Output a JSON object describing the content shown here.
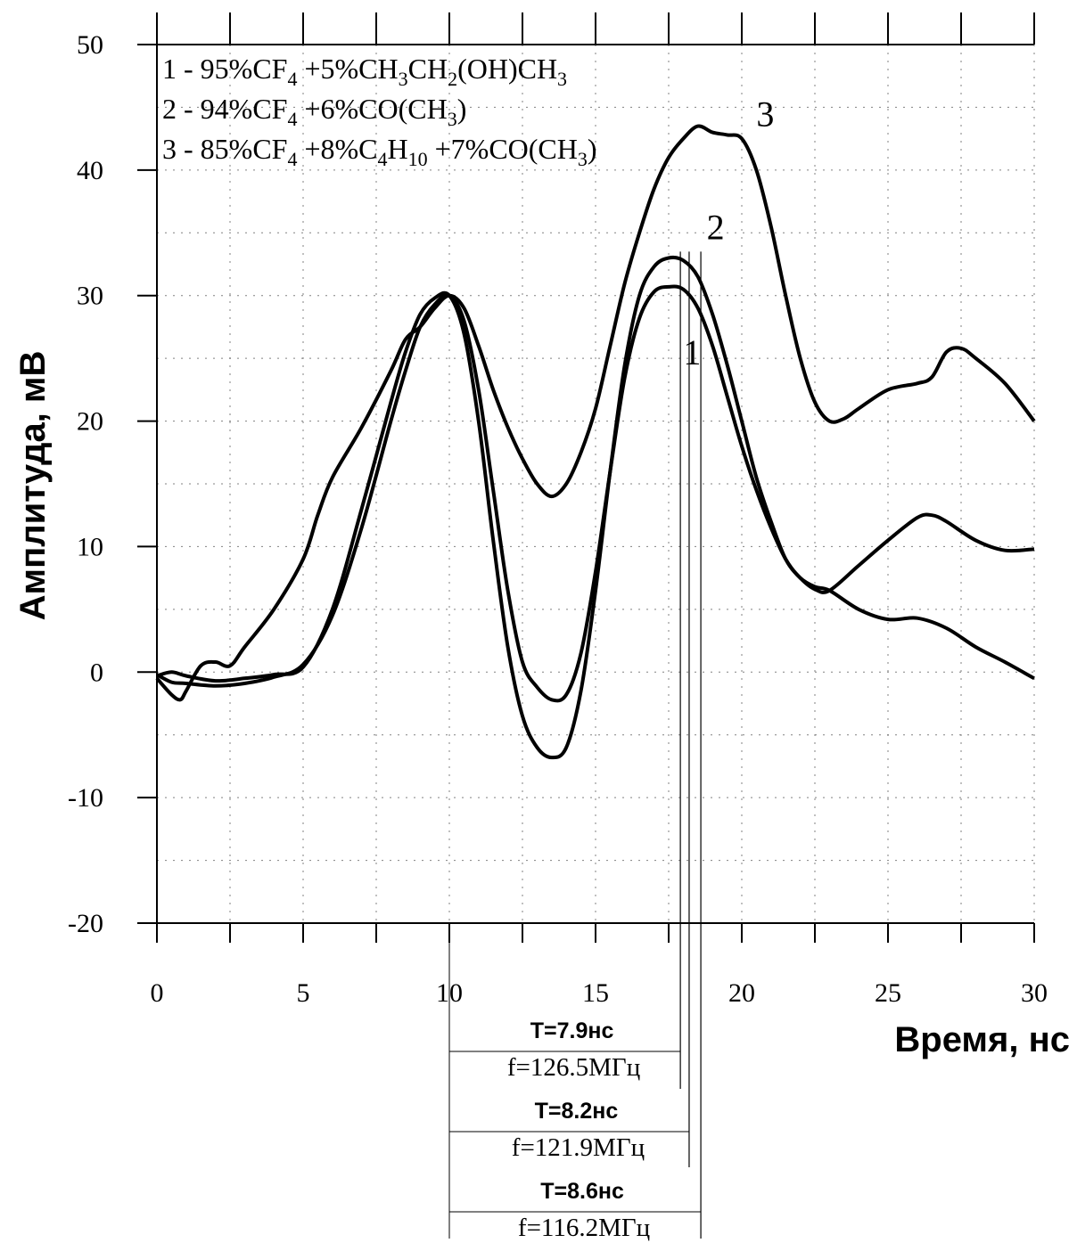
{
  "chart_data": {
    "type": "line",
    "title": "",
    "xlabel": "Время, нс",
    "ylabel": "Амплитуда, мВ",
    "xlim": [
      0,
      30
    ],
    "ylim": [
      -20,
      50
    ],
    "x_ticks": [
      0,
      5,
      10,
      15,
      20,
      25,
      30
    ],
    "y_ticks": [
      -20,
      -10,
      0,
      10,
      20,
      30,
      40,
      50
    ],
    "grid": true,
    "legend_position": "top-left",
    "legend": [
      "1 - 95%CF4 +5%CH3CH2(OH)CH3",
      "2 - 94%CF4 +6%CO(CH3)",
      "3 - 85%CF4 +8%C4H10 +7%CO(CH3)"
    ],
    "series": [
      {
        "name": "1",
        "label_x": 18.0,
        "label_y": 24.5,
        "x": [
          0,
          0.5,
          1,
          2,
          3,
          4,
          5,
          6,
          7,
          8,
          8.5,
          9,
          9.5,
          10,
          10.5,
          11,
          11.5,
          12,
          12.5,
          13,
          13.5,
          14,
          14.5,
          15,
          15.5,
          16,
          16.5,
          17,
          17.5,
          18,
          18.5,
          19,
          19.5,
          20,
          20.5,
          21,
          21.5,
          22,
          22.5,
          23,
          24,
          25,
          26,
          27,
          28,
          29,
          30
        ],
        "y": [
          -0.2,
          -0.8,
          -0.9,
          -1.1,
          -0.9,
          -0.4,
          0.6,
          4.5,
          11.5,
          20.0,
          24.0,
          27.5,
          29.3,
          30.0,
          28.0,
          22.5,
          14.5,
          6.5,
          0.8,
          -1.2,
          -2.2,
          -1.8,
          1.5,
          8.0,
          16.0,
          23.5,
          28.2,
          30.3,
          30.7,
          30.5,
          29.0,
          26.0,
          22.0,
          18.0,
          14.5,
          11.5,
          9.0,
          7.5,
          6.8,
          6.5,
          5.0,
          4.2,
          4.3,
          3.5,
          2.0,
          0.8,
          -0.5
        ]
      },
      {
        "name": "2",
        "label_x": 18.8,
        "label_y": 34.5,
        "x": [
          0,
          0.5,
          1,
          2,
          3,
          4,
          5,
          6,
          7,
          8,
          8.5,
          9,
          9.5,
          10,
          10.5,
          11,
          11.5,
          12,
          12.5,
          13,
          13.5,
          14,
          14.5,
          15,
          15.5,
          16,
          16.5,
          17,
          17.5,
          18,
          18.5,
          19,
          19.5,
          20,
          20.5,
          21,
          21.5,
          22,
          22.5,
          23,
          24,
          25,
          26,
          26.5,
          27,
          28,
          29,
          30
        ],
        "y": [
          -0.3,
          0.0,
          -0.3,
          -0.7,
          -0.5,
          -0.2,
          0.4,
          5.0,
          13.0,
          21.5,
          25.5,
          28.5,
          29.8,
          30.0,
          27.0,
          20.0,
          10.5,
          2.0,
          -3.5,
          -6.0,
          -6.8,
          -6.0,
          -1.5,
          6.5,
          16.0,
          24.5,
          30.0,
          32.3,
          33.0,
          32.8,
          31.5,
          28.5,
          24.5,
          20.0,
          15.5,
          12.0,
          9.0,
          7.5,
          6.6,
          6.5,
          8.5,
          10.5,
          12.3,
          12.5,
          12.0,
          10.5,
          9.7,
          9.8
        ]
      },
      {
        "name": "3",
        "label_x": 20.5,
        "label_y": 43.5,
        "x": [
          0,
          0.5,
          0.8,
          1,
          1.5,
          2,
          2.5,
          3,
          4,
          5,
          5.5,
          6,
          7,
          8,
          8.5,
          9,
          9.5,
          10,
          10.5,
          11,
          11.5,
          12,
          12.5,
          13,
          13.5,
          14,
          14.5,
          15,
          15.5,
          16,
          16.5,
          17,
          17.5,
          18,
          18.5,
          19,
          19.5,
          20,
          20.5,
          21,
          21.5,
          22,
          22.5,
          23,
          23.5,
          24,
          25,
          26,
          26.5,
          27,
          27.5,
          28,
          29,
          30
        ],
        "y": [
          -0.5,
          -1.8,
          -2.2,
          -1.5,
          0.5,
          0.8,
          0.5,
          2.0,
          5.0,
          9.0,
          12.5,
          15.5,
          19.5,
          24.0,
          26.5,
          27.5,
          29.0,
          30.0,
          29.0,
          26.0,
          22.5,
          19.5,
          17.0,
          15.0,
          14.0,
          15.0,
          17.5,
          21.0,
          26.0,
          31.0,
          35.0,
          38.5,
          41.0,
          42.5,
          43.5,
          43.0,
          42.8,
          42.5,
          40.0,
          35.5,
          30.0,
          25.0,
          21.5,
          20.0,
          20.2,
          21.0,
          22.5,
          23.0,
          23.5,
          25.5,
          25.8,
          25.0,
          23.0,
          20.0
        ]
      }
    ],
    "period_markers": [
      {
        "T": "T=7.9нс",
        "f": "f=126.5МГц",
        "x_start": 10.0,
        "x_end": 17.9
      },
      {
        "T": "T=8.2нс",
        "f": "f=121.9МГц",
        "x_start": 10.0,
        "x_end": 18.2
      },
      {
        "T": "T=8.6нс",
        "f": "f=116.2МГц",
        "x_start": 10.0,
        "x_end": 18.6
      }
    ],
    "colors": {
      "line": "#000000",
      "grid": "#808080",
      "background": "#ffffff"
    }
  }
}
